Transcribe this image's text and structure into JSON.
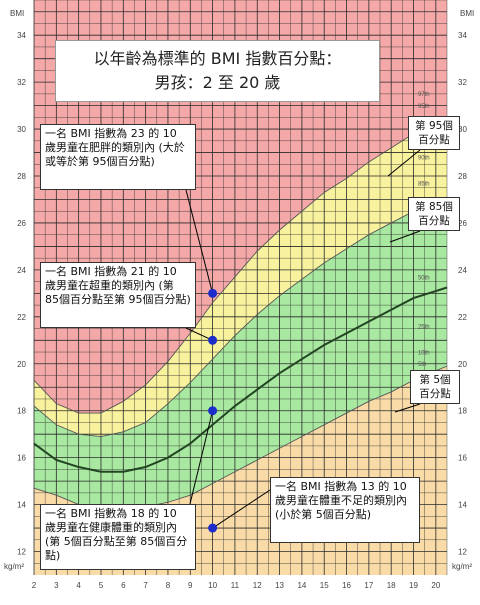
{
  "chart_data": {
    "type": "line",
    "title_line1": "以年齡為標準的 BMI 指數百分點：",
    "title_line2": "男孩：2 至 20 歲",
    "ylabel": "BMI",
    "unit_label": "kg/m²",
    "x_ticks": [
      "2",
      "3",
      "4",
      "5",
      "6",
      "7",
      "8",
      "9",
      "10",
      "11",
      "12",
      "13",
      "14",
      "15",
      "16",
      "17",
      "18",
      "19",
      "20"
    ],
    "y_ticks_left": [
      "34",
      "32",
      "30",
      "28",
      "26",
      "24",
      "22",
      "20",
      "18",
      "16",
      "14",
      "12"
    ],
    "y_ticks_right": [
      "34",
      "32",
      "30",
      "28",
      "26",
      "24",
      "22",
      "20",
      "18",
      "16",
      "14",
      "12"
    ],
    "xlim": [
      2,
      20.5
    ],
    "ylim": [
      11,
      35.5
    ],
    "grid": true,
    "percentile_labels": [
      "97th",
      "95th",
      "90th",
      "85th",
      "75th",
      "50th",
      "25th",
      "10th",
      "5th",
      "3rd"
    ],
    "x": [
      2,
      3,
      4,
      5,
      6,
      7,
      8,
      9,
      10,
      11,
      12,
      13,
      14,
      15,
      16,
      17,
      18,
      19,
      20
    ],
    "series": [
      {
        "name": "5th",
        "values": [
          14.7,
          14.4,
          14.0,
          13.8,
          13.8,
          13.9,
          14.1,
          14.4,
          14.9,
          15.4,
          15.9,
          16.4,
          16.9,
          17.4,
          17.9,
          18.4,
          18.8,
          19.3,
          19.7
        ]
      },
      {
        "name": "50th",
        "values": [
          16.6,
          15.9,
          15.6,
          15.4,
          15.4,
          15.6,
          16.0,
          16.6,
          17.4,
          18.2,
          18.9,
          19.6,
          20.2,
          20.8,
          21.3,
          21.8,
          22.3,
          22.8,
          23.1
        ]
      },
      {
        "name": "85th",
        "values": [
          18.2,
          17.4,
          17.0,
          16.9,
          17.1,
          17.5,
          18.3,
          19.2,
          20.2,
          21.2,
          22.1,
          22.9,
          23.6,
          24.3,
          24.9,
          25.5,
          26.0,
          26.5,
          26.9
        ]
      },
      {
        "name": "95th",
        "values": [
          19.3,
          18.3,
          17.9,
          17.9,
          18.4,
          19.1,
          20.1,
          21.3,
          22.6,
          23.7,
          24.8,
          25.7,
          26.5,
          27.3,
          27.9,
          28.6,
          29.2,
          29.8,
          30.2
        ]
      }
    ],
    "points": [
      {
        "x": 10,
        "y": 23
      },
      {
        "x": 10,
        "y": 21
      },
      {
        "x": 10,
        "y": 18
      },
      {
        "x": 10,
        "y": 13
      }
    ],
    "colors": {
      "obese": "#f4a8a8",
      "overweight": "#f8f29e",
      "healthy": "#a8e8a0",
      "underweight": "#f9dba8",
      "grid": "#2a2a2a",
      "marker": "#1c2cc8",
      "median_line": "#224422"
    }
  },
  "annotations": {
    "obese": "一名 BMI 指數為 23 的 10 歲男童在肥胖的類別內 (大於或等於第 95個百分點)",
    "overweight": "一名 BMI 指數為 21 的 10 歲男童在超重的類別內 (第 85個百分點至第 95個百分點)",
    "healthy": "一名 BMI 指數為 18 的 10 歲男童在健康體重的類別內 (第 5個百分點至第 85個百分點)",
    "underweight": "一名 BMI 指數為 13 的 10 歲男童在體重不足的類別內 (小於第 5個百分點)"
  },
  "callouts": {
    "p95": "第 95個 百分點",
    "p85": "第 85個 百分點",
    "p5": "第 5個 百分點"
  }
}
